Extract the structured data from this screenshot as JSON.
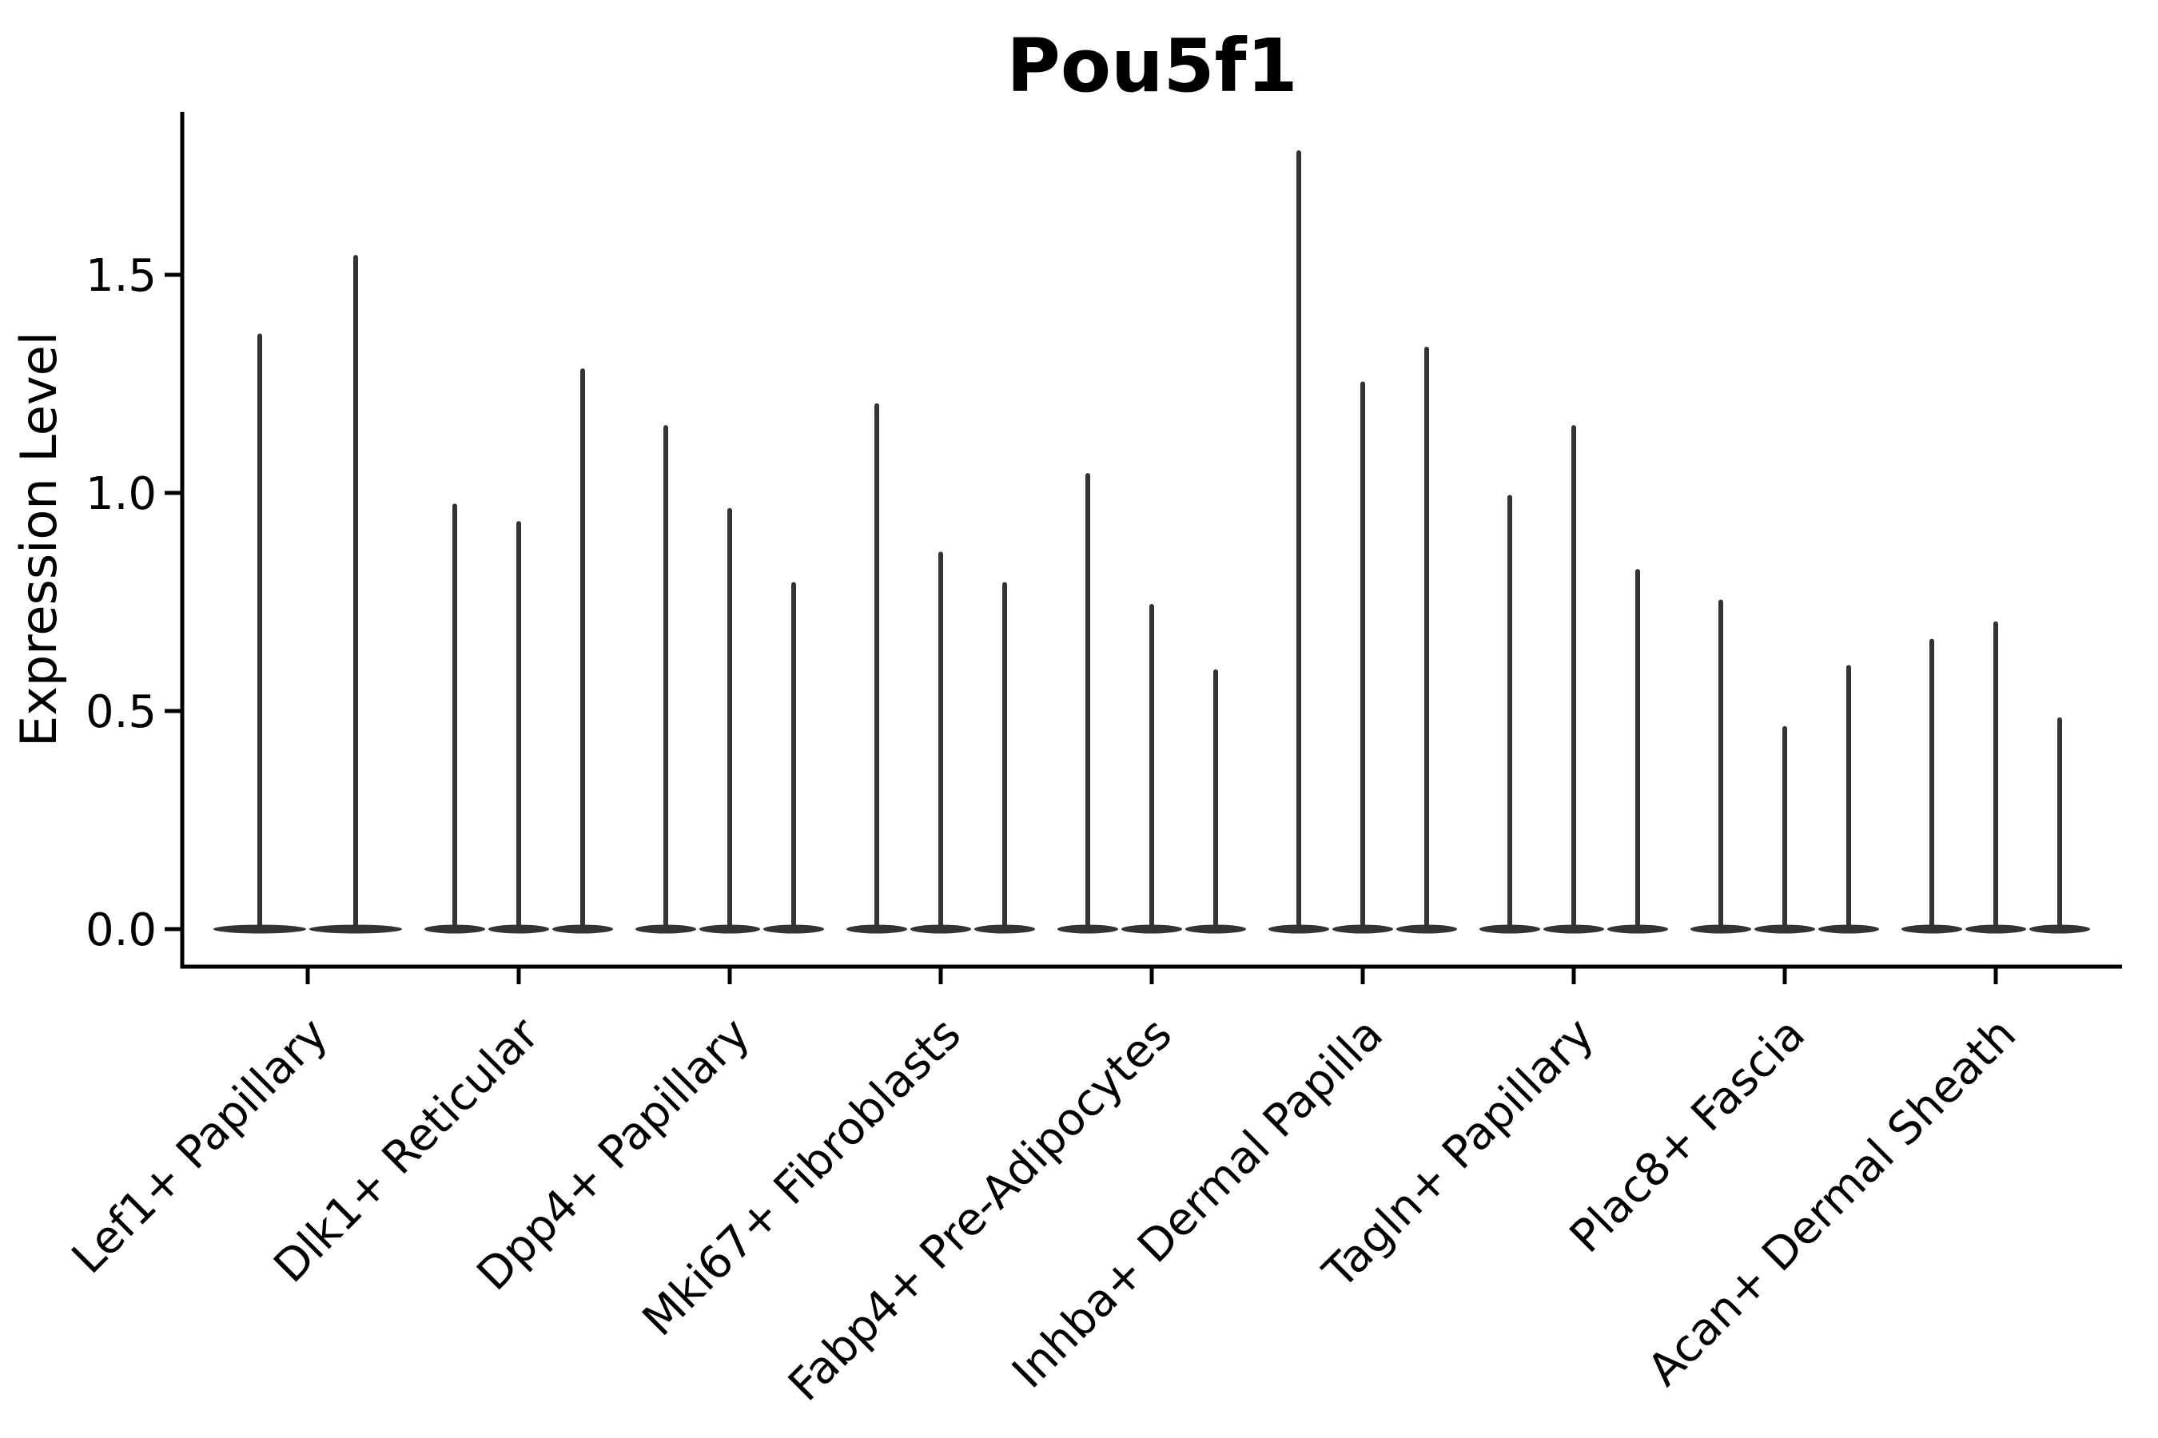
{
  "figure": {
    "background": "#ffffff"
  },
  "chart_data": {
    "type": "violin",
    "title": "Pou5f1",
    "ylabel": "Expression Level",
    "xlabel": "",
    "yticks": [
      "0.0",
      "0.5",
      "1.0",
      "1.5"
    ],
    "ytick_values": [
      0.0,
      0.5,
      1.0,
      1.5
    ],
    "ylim": [
      -0.09,
      1.87
    ],
    "grid": false,
    "legend": null,
    "violin_color": "#333333",
    "axis_color": "#000000",
    "categories": [
      "Lef1+ Papillary",
      "Dlk1+ Reticular",
      "Dpp4+ Papillary",
      "Mki67+ Fibroblasts",
      "Fabp4+ Pre-Adipocytes",
      "Inhba+ Dermal Papilla",
      "Tagln+ Papillary",
      "Plac8+ Fascia",
      "Acan+ Dermal Sheath"
    ],
    "groups": [
      {
        "category": "Lef1+ Papillary",
        "violin_max_values": [
          1.36,
          1.54
        ]
      },
      {
        "category": "Dlk1+ Reticular",
        "violin_max_values": [
          0.97,
          0.93,
          1.28
        ]
      },
      {
        "category": "Dpp4+ Papillary",
        "violin_max_values": [
          1.15,
          0.96,
          0.79
        ]
      },
      {
        "category": "Mki67+ Fibroblasts",
        "violin_max_values": [
          1.2,
          0.86,
          0.79
        ]
      },
      {
        "category": "Fabp4+ Pre-Adipocytes",
        "violin_max_values": [
          1.04,
          0.74,
          0.59
        ]
      },
      {
        "category": "Inhba+ Dermal Papilla",
        "violin_max_values": [
          1.78,
          1.25,
          1.33
        ]
      },
      {
        "category": "Tagln+ Papillary",
        "violin_max_values": [
          0.99,
          1.15,
          0.82
        ]
      },
      {
        "category": "Plac8+ Fascia",
        "violin_max_values": [
          0.75,
          0.46,
          0.6
        ]
      },
      {
        "category": "Acan+ Dermal Sheath",
        "violin_max_values": [
          0.66,
          0.7,
          0.48
        ]
      }
    ]
  }
}
